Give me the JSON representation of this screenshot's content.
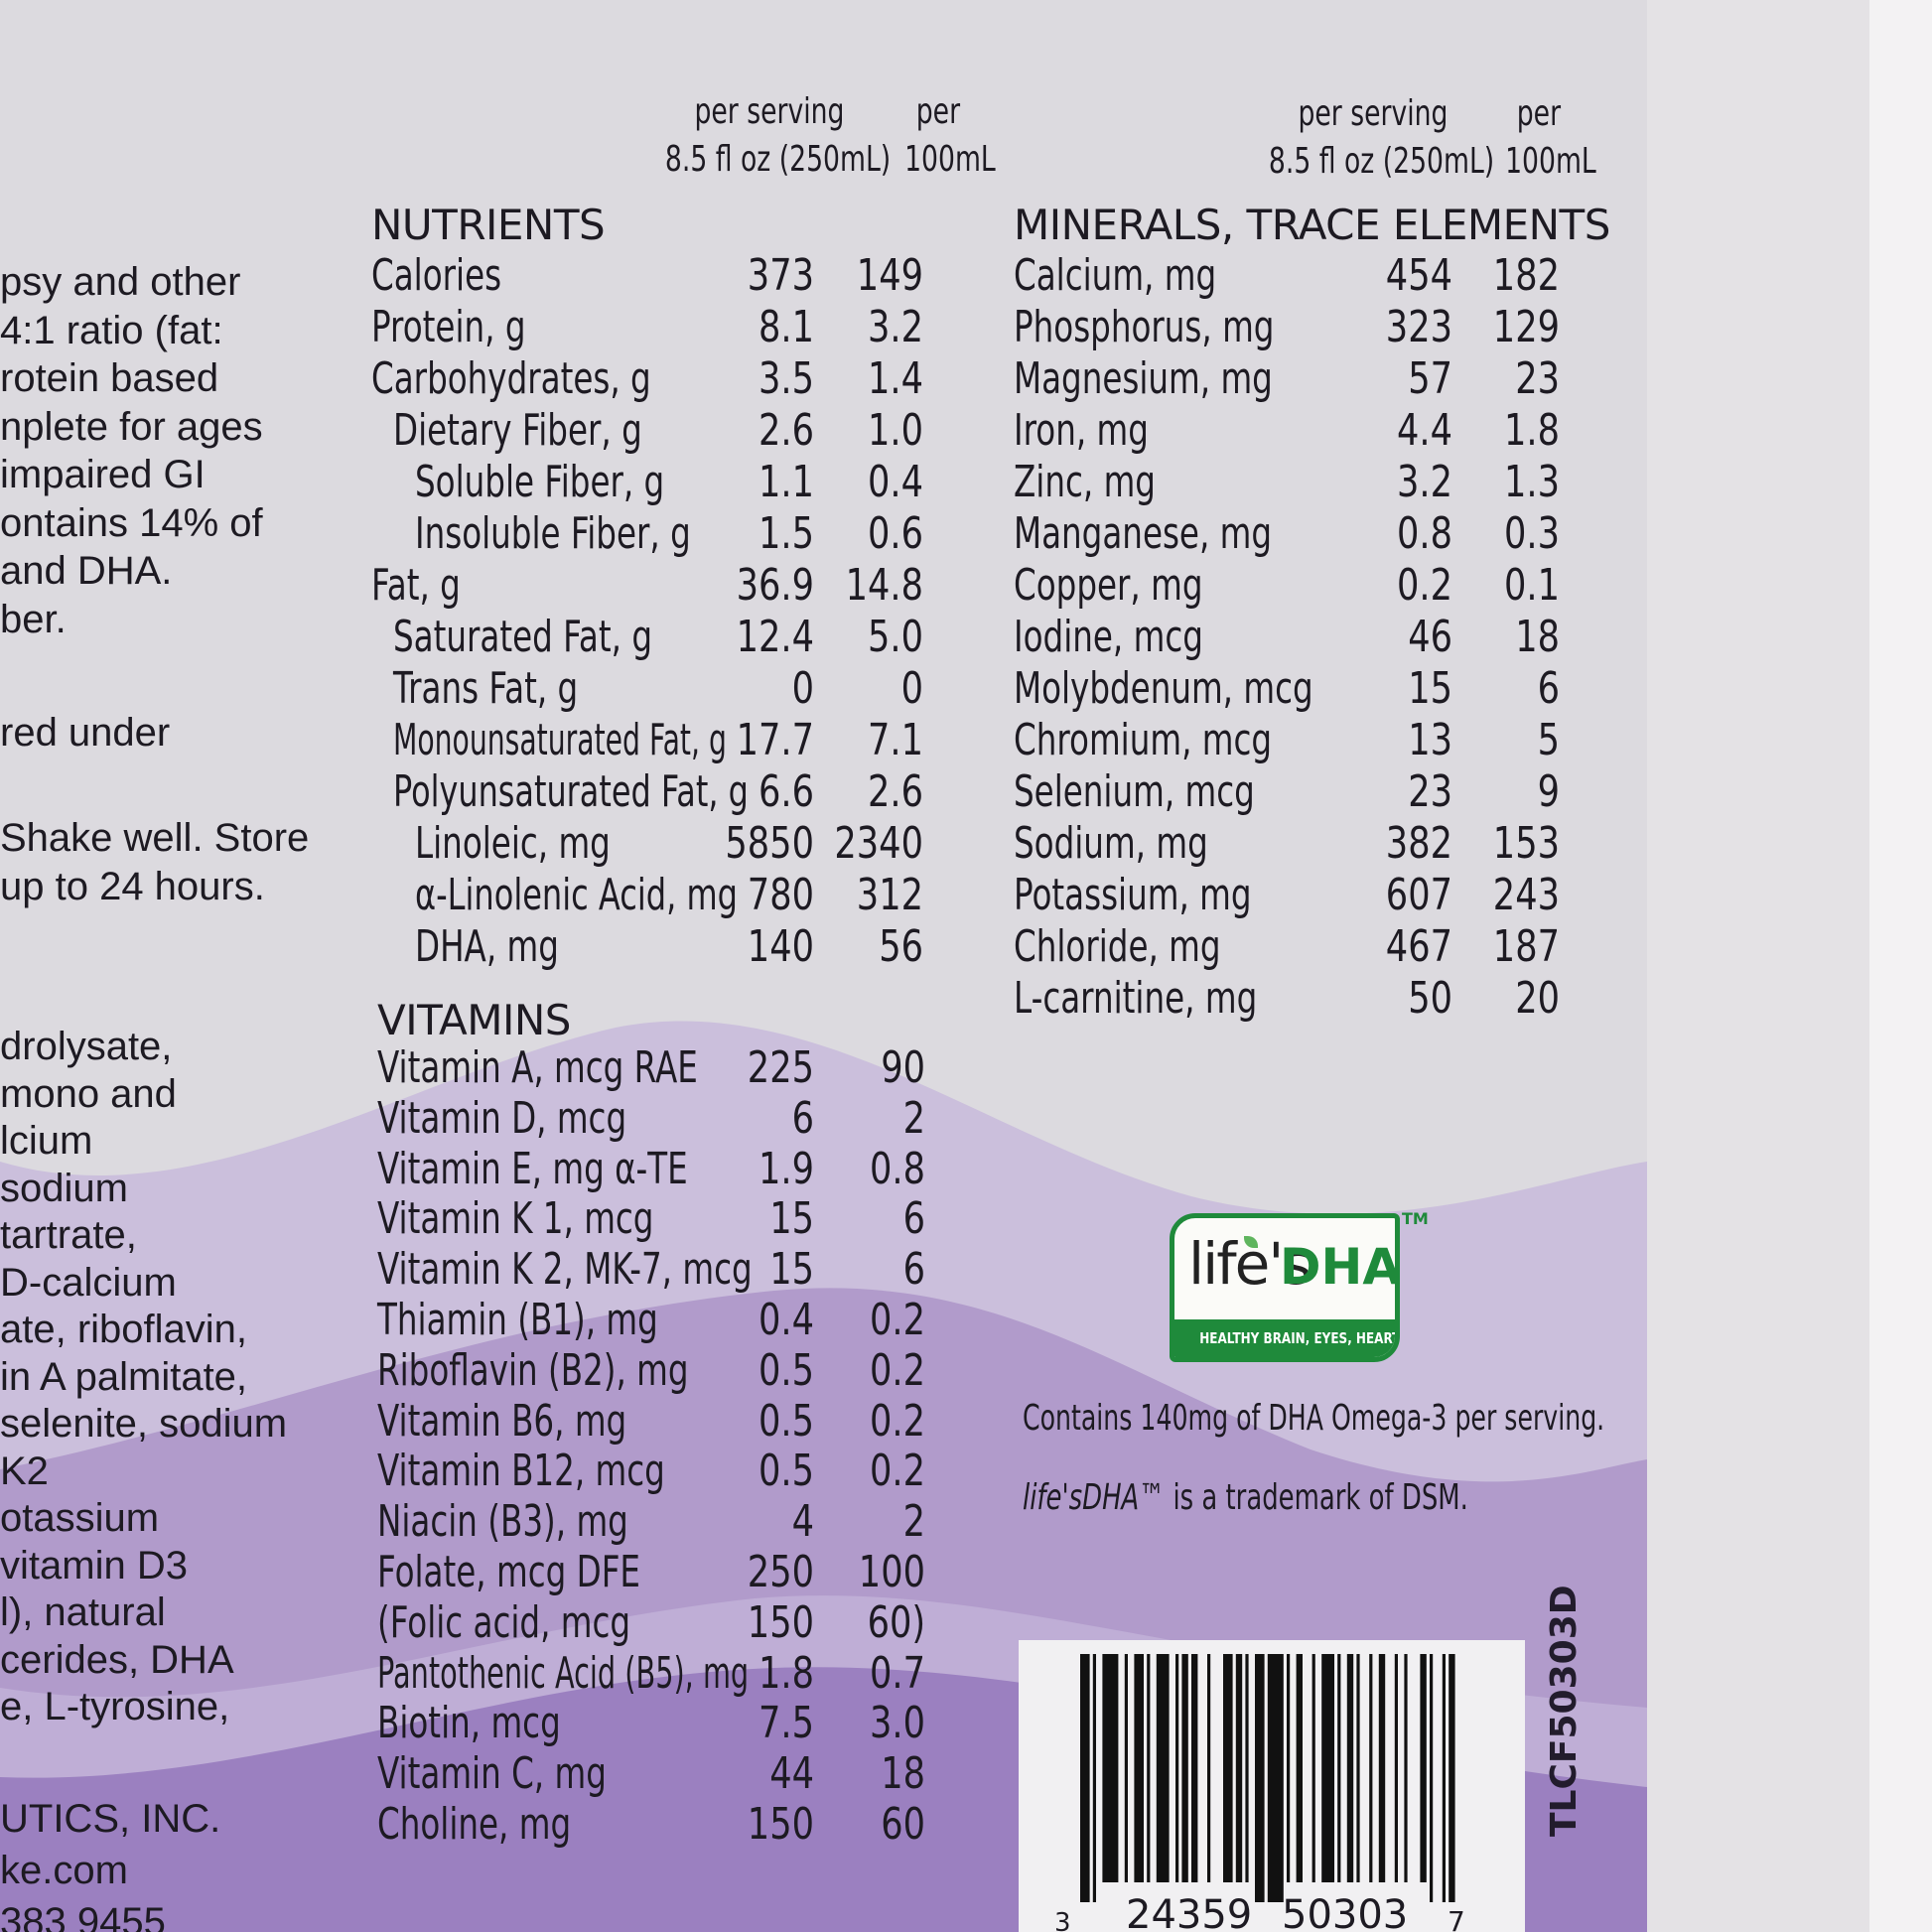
{
  "left_text": {
    "block1": [
      "psy and other",
      "4:1 ratio (fat:",
      "rotein based",
      "nplete for ages",
      "impaired GI",
      "ontains 14% of",
      "and DHA.",
      "ber."
    ],
    "block2": [
      "red under"
    ],
    "block3": [
      "Shake well. Store",
      "up to 24 hours."
    ],
    "block4": [
      "drolysate,",
      "mono and",
      "lcium",
      "sodium",
      "tartrate,",
      "D-calcium",
      "ate, riboflavin,",
      "in A palmitate,",
      "selenite, sodium",
      "K2",
      "otassium",
      "vitamin D3",
      "l), natural",
      "cerides, DHA",
      "e, L-tyrosine,"
    ],
    "block5": [
      "UTICS, INC.",
      "ke.com",
      "383 9455"
    ]
  },
  "column_headers": {
    "per_serving": "per serving",
    "serving_size": "8.5 fl oz (250mL)",
    "per": "per",
    "per_unit": "100mL"
  },
  "nutrients": {
    "title": "NUTRIENTS",
    "rows": [
      {
        "label": "Calories",
        "serving": "373",
        "per100": "149",
        "indent": 0
      },
      {
        "label": "Protein, g",
        "serving": "8.1",
        "per100": "3.2",
        "indent": 0
      },
      {
        "label": "Carbohydrates, g",
        "serving": "3.5",
        "per100": "1.4",
        "indent": 0
      },
      {
        "label": "Dietary Fiber, g",
        "serving": "2.6",
        "per100": "1.0",
        "indent": 1
      },
      {
        "label": "Soluble Fiber, g",
        "serving": "1.1",
        "per100": "0.4",
        "indent": 2
      },
      {
        "label": "Insoluble Fiber, g",
        "serving": "1.5",
        "per100": "0.6",
        "indent": 2
      },
      {
        "label": "Fat, g",
        "serving": "36.9",
        "per100": "14.8",
        "indent": 0
      },
      {
        "label": "Saturated Fat, g",
        "serving": "12.4",
        "per100": "5.0",
        "indent": 1
      },
      {
        "label": "Trans Fat, g",
        "serving": "0",
        "per100": "0",
        "indent": 1
      },
      {
        "label": "Monounsaturated Fat, g",
        "serving": "17.7",
        "per100": "7.1",
        "indent": 1
      },
      {
        "label": "Polyunsaturated Fat, g",
        "serving": "6.6",
        "per100": "2.6",
        "indent": 1
      },
      {
        "label": "Linoleic, mg",
        "serving": "5850",
        "per100": "2340",
        "indent": 2
      },
      {
        "label": "α-Linolenic Acid, mg",
        "serving": "780",
        "per100": "312",
        "indent": 2
      },
      {
        "label": "DHA, mg",
        "serving": "140",
        "per100": "56",
        "indent": 2
      }
    ]
  },
  "vitamins": {
    "title": "VITAMINS",
    "rows": [
      {
        "label": "Vitamin A, mcg RAE",
        "serving": "225",
        "per100": "90"
      },
      {
        "label": "Vitamin D, mcg",
        "serving": "6",
        "per100": "2"
      },
      {
        "label": "Vitamin E, mg α-TE",
        "serving": "1.9",
        "per100": "0.8"
      },
      {
        "label": "Vitamin K 1, mcg",
        "serving": "15",
        "per100": "6"
      },
      {
        "label": "Vitamin K 2, MK-7, mcg",
        "serving": "15",
        "per100": "6"
      },
      {
        "label": "Thiamin (B1), mg",
        "serving": "0.4",
        "per100": "0.2"
      },
      {
        "label": "Riboflavin (B2), mg",
        "serving": "0.5",
        "per100": "0.2"
      },
      {
        "label": "Vitamin B6, mg",
        "serving": "0.5",
        "per100": "0.2"
      },
      {
        "label": "Vitamin B12, mcg",
        "serving": "0.5",
        "per100": "0.2"
      },
      {
        "label": "Niacin (B3), mg",
        "serving": "4",
        "per100": "2"
      },
      {
        "label": "Folate, mcg DFE",
        "serving": "250",
        "per100": "100"
      },
      {
        "label": " (Folic acid, mcg",
        "serving": "150",
        "per100": "60)"
      },
      {
        "label": "Pantothenic Acid (B5), mg",
        "serving": "1.8",
        "per100": "0.7"
      },
      {
        "label": "Biotin, mcg",
        "serving": "7.5",
        "per100": "3.0"
      },
      {
        "label": "Vitamin C, mg",
        "serving": "44",
        "per100": "18"
      },
      {
        "label": "Choline, mg",
        "serving": "150",
        "per100": "60"
      }
    ]
  },
  "minerals": {
    "title": "MINERALS, TRACE ELEMENTS",
    "rows": [
      {
        "label": "Calcium, mg",
        "serving": "454",
        "per100": "182"
      },
      {
        "label": "Phosphorus, mg",
        "serving": "323",
        "per100": "129"
      },
      {
        "label": "Magnesium, mg",
        "serving": "57",
        "per100": "23"
      },
      {
        "label": "Iron, mg",
        "serving": "4.4",
        "per100": "1.8"
      },
      {
        "label": "Zinc, mg",
        "serving": "3.2",
        "per100": "1.3"
      },
      {
        "label": "Manganese, mg",
        "serving": "0.8",
        "per100": "0.3"
      },
      {
        "label": "Copper, mg",
        "serving": "0.2",
        "per100": "0.1"
      },
      {
        "label": "Iodine, mcg",
        "serving": "46",
        "per100": "18"
      },
      {
        "label": "Molybdenum, mcg",
        "serving": "15",
        "per100": "6"
      },
      {
        "label": "Chromium, mcg",
        "serving": "13",
        "per100": "5"
      },
      {
        "label": "Selenium, mcg",
        "serving": "23",
        "per100": "9"
      },
      {
        "label": "Sodium, mg",
        "serving": "382",
        "per100": "153"
      },
      {
        "label": "Potassium, mg",
        "serving": "607",
        "per100": "243"
      },
      {
        "label": "Chloride, mg",
        "serving": "467",
        "per100": "187"
      },
      {
        "label": "L-carnitine, mg",
        "serving": "50",
        "per100": "20"
      }
    ]
  },
  "logo": {
    "brand_life": "life's",
    "brand_dha": "DHA",
    "tagline": "HEALTHY BRAIN, EYES, HEART",
    "tm": "TM",
    "green": "#1f8a3b"
  },
  "dha_note": "Contains 140mg of DHA Omega-3 per serving.",
  "trademark_note": {
    "brand": "life'sDHA™",
    "text": " is a trademark of DSM."
  },
  "barcode": {
    "digits_left": "3",
    "digits_group1": "24359",
    "digits_group2": "50303",
    "digits_right": "7"
  },
  "product_code": "TLCF50303D",
  "colors": {
    "label_bg": "#dcdadf",
    "wave_light": "#cbbfdc",
    "wave_mid": "#b19bcb",
    "wave_dark": "#9b80c0",
    "text": "#1d1a22"
  }
}
